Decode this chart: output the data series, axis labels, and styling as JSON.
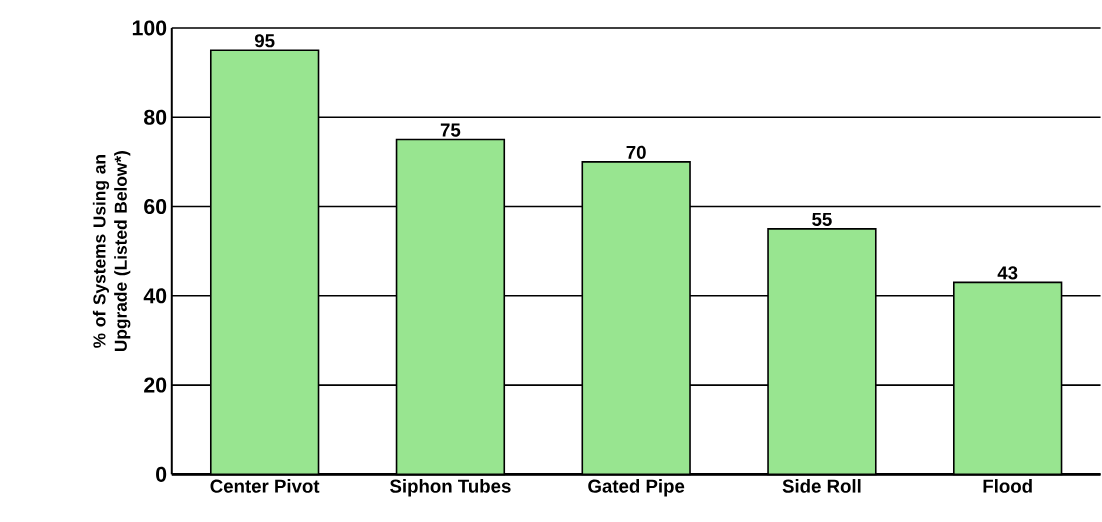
{
  "chart_data": {
    "type": "bar",
    "ylabel": "% of Systems Using an Upgrade (Listed Below*)",
    "categories": [
      "Center Pivot",
      "Siphon Tubes",
      "Gated Pipe",
      "Side Roll",
      "Flood"
    ],
    "values": [
      95,
      75,
      70,
      55,
      43
    ],
    "color": "#98e590",
    "ylim": [
      0,
      100
    ],
    "yticks": [
      0,
      20,
      40,
      60,
      80,
      100
    ],
    "grid": "y",
    "data_labels": true
  }
}
